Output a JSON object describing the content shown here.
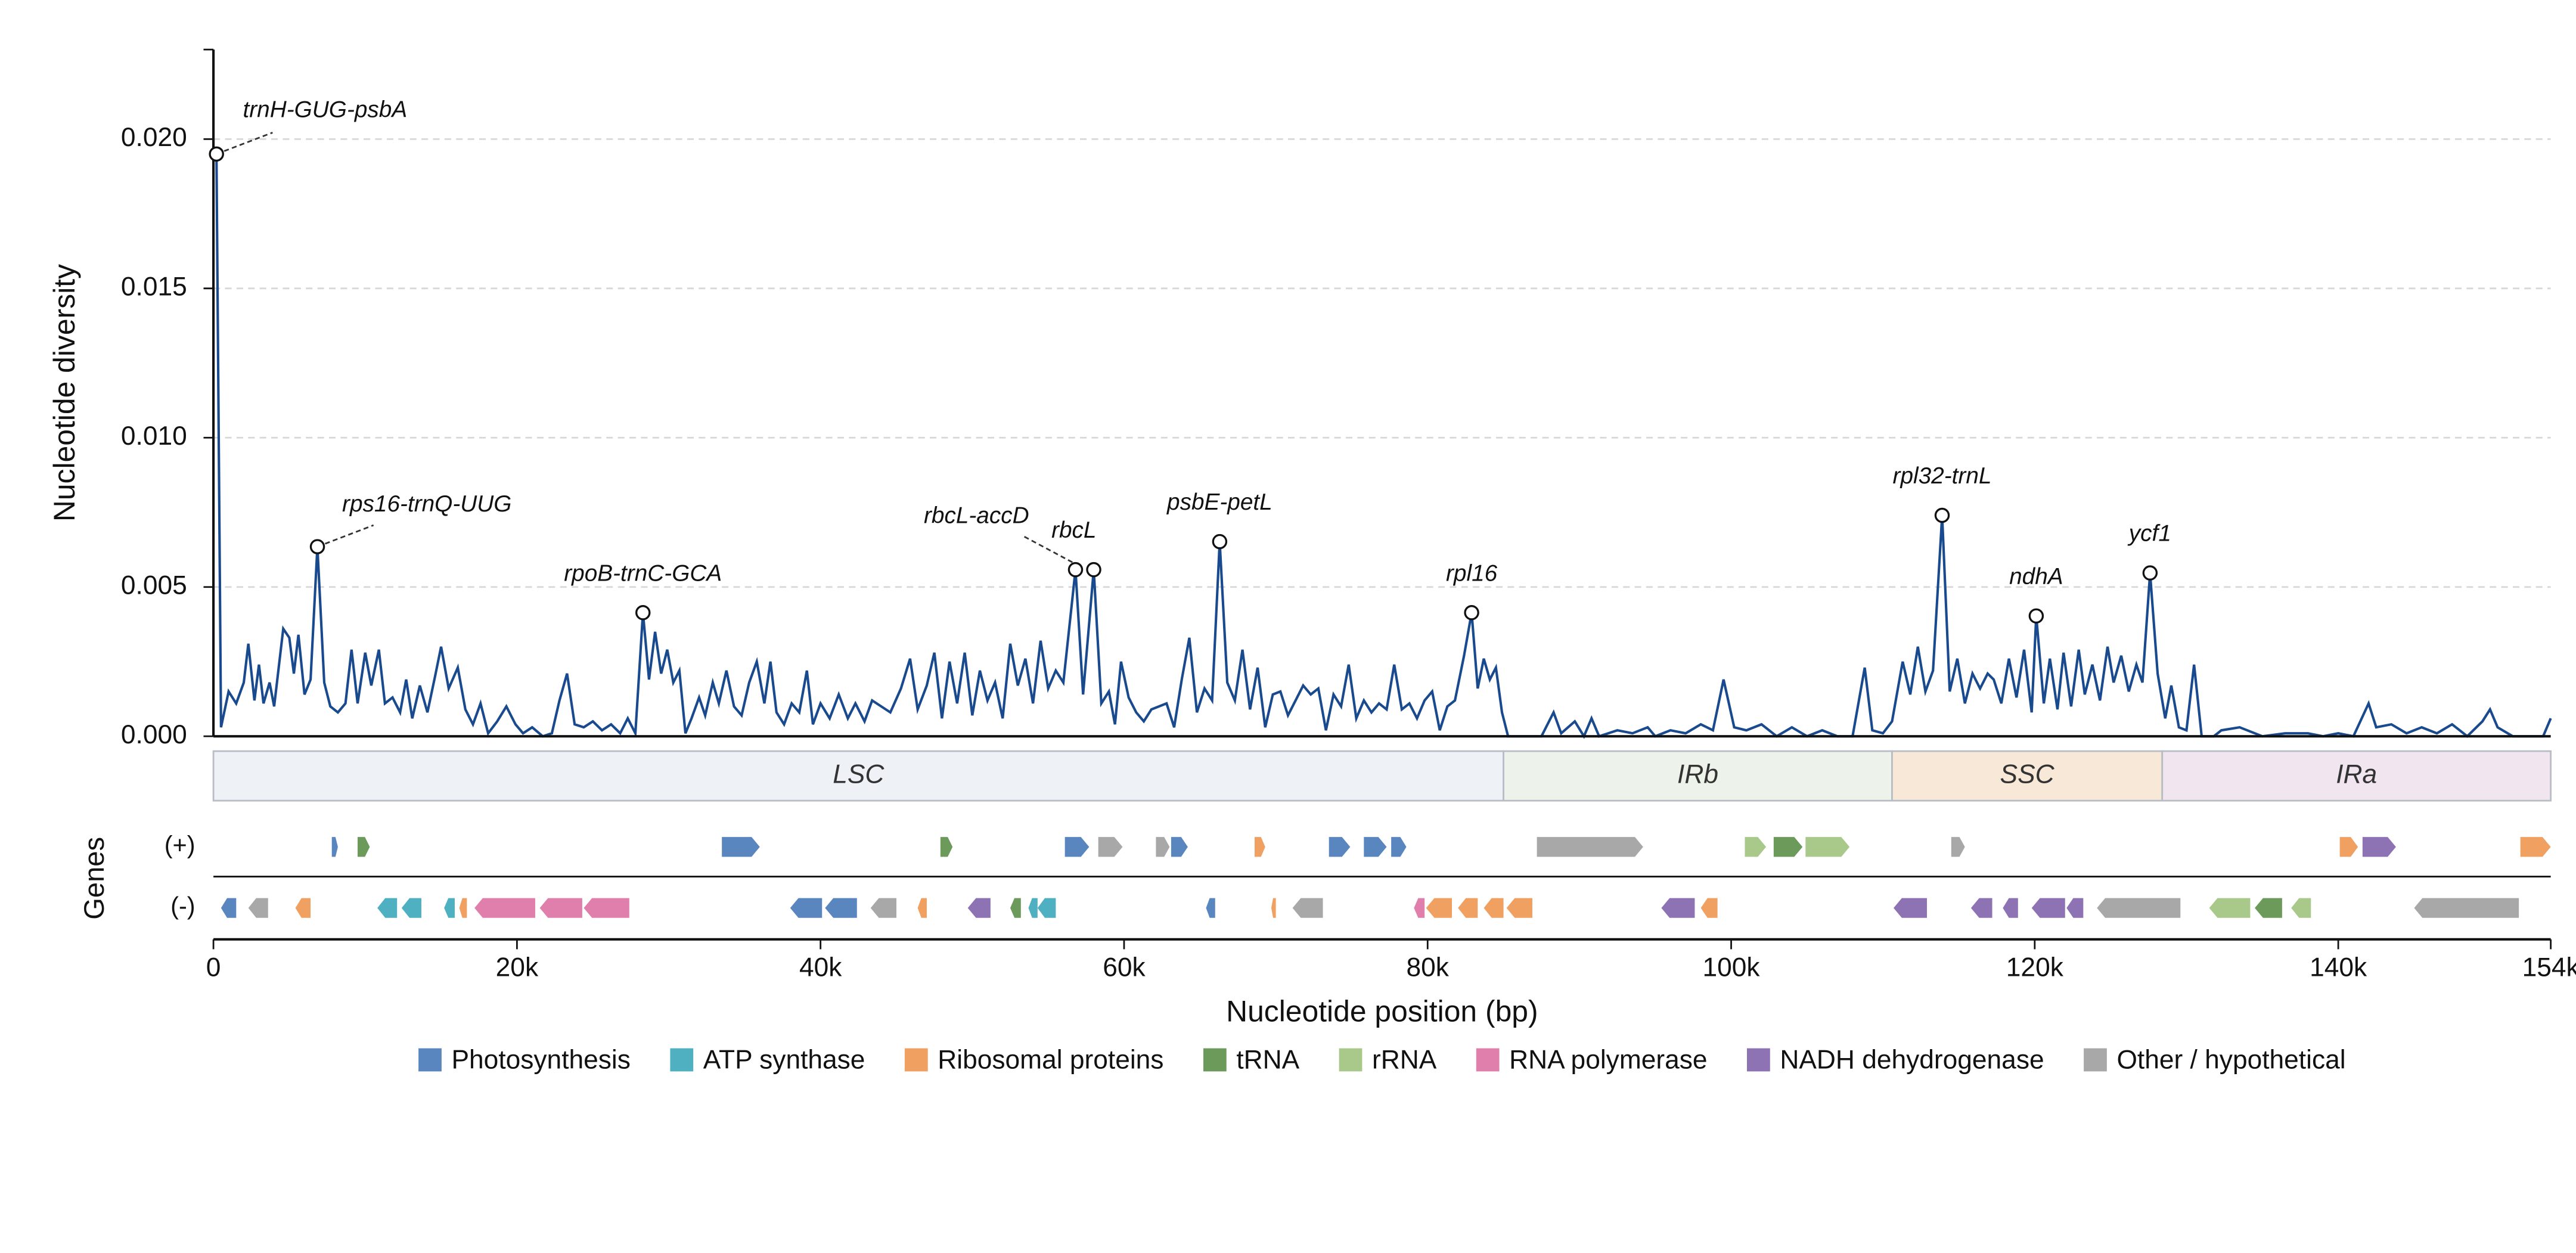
{
  "chart_data": {
    "type": "line",
    "ylabel": "Nucleotide diversity",
    "xlabel": "Nucleotide position (bp)",
    "track_title": "Genes",
    "color": "#1a4a8e",
    "xlim": [
      0,
      154000
    ],
    "ylim": [
      0,
      0.023
    ],
    "xticks": [
      0,
      {
        "value": 20000,
        "label": "20k"
      },
      {
        "value": 40000,
        "label": "40k"
      },
      {
        "value": 60000,
        "label": "60k"
      },
      {
        "value": 80000,
        "label": "80k"
      },
      {
        "value": 100000,
        "label": "100k"
      },
      {
        "value": 120000,
        "label": "120k"
      },
      {
        "value": 140000,
        "label": "140k"
      },
      {
        "value": 154000,
        "label": "154k"
      }
    ],
    "yticks": [
      {
        "value": 0,
        "label": "0.000"
      },
      0.005,
      {
        "value": 0.01,
        "label": "0.010"
      },
      0.015,
      {
        "value": 0.02,
        "label": "0.020"
      }
    ],
    "grid": true,
    "x": [
      200,
      500,
      1000,
      1500,
      2000,
      2300,
      2700,
      3000,
      3300,
      3700,
      4000,
      4600,
      5000,
      5300,
      5600,
      6000,
      6400,
      6850,
      7300,
      7700,
      8200,
      8700,
      9100,
      9500,
      10000,
      10400,
      10900,
      11300,
      11800,
      12300,
      12700,
      13100,
      13600,
      14100,
      14600,
      15000,
      15500,
      16100,
      16600,
      17100,
      17600,
      18100,
      18700,
      19300,
      19900,
      20400,
      21000,
      21700,
      22300,
      22800,
      23300,
      23800,
      24400,
      25000,
      25600,
      26200,
      26800,
      27300,
      27800,
      28300,
      28700,
      29100,
      29500,
      29900,
      30300,
      30700,
      31100,
      31500,
      32000,
      32400,
      32900,
      33300,
      33800,
      34300,
      34800,
      35300,
      35800,
      36300,
      36700,
      37100,
      37600,
      38100,
      38600,
      39100,
      39500,
      40000,
      40600,
      41200,
      41800,
      42300,
      42900,
      43400,
      44000,
      44600,
      45300,
      45900,
      46400,
      47000,
      47500,
      48000,
      48500,
      49000,
      49500,
      50000,
      50500,
      51000,
      51500,
      52000,
      52500,
      53000,
      53500,
      54000,
      54500,
      55000,
      55500,
      56000,
      56800,
      57300,
      58000,
      58500,
      59000,
      59400,
      59800,
      60300,
      60800,
      61300,
      61800,
      62300,
      62800,
      63300,
      63800,
      64300,
      64800,
      65300,
      65800,
      66300,
      66800,
      67300,
      67800,
      68300,
      68800,
      69300,
      69800,
      70300,
      70800,
      71300,
      71800,
      72300,
      72800,
      73300,
      73800,
      74300,
      74800,
      75300,
      75800,
      76300,
      76800,
      77300,
      77800,
      78300,
      78800,
      79300,
      79800,
      80300,
      80800,
      81300,
      81800,
      82400,
      82900,
      83300,
      83700,
      84100,
      84500,
      84900,
      85300,
      87500,
      88300,
      88800,
      89700,
      90300,
      90800,
      91300,
      92500,
      93500,
      94500,
      95000,
      96000,
      97000,
      98000,
      98800,
      99500,
      100200,
      101000,
      102000,
      103000,
      104000,
      105000,
      106000,
      107000,
      108000,
      108800,
      109300,
      110000,
      110600,
      111300,
      111800,
      112300,
      112800,
      113300,
      113900,
      114400,
      114900,
      115400,
      115900,
      116400,
      116900,
      117300,
      117800,
      118300,
      118800,
      119300,
      119800,
      120100,
      120600,
      121000,
      121500,
      121900,
      122400,
      122900,
      123300,
      123800,
      124300,
      124800,
      125200,
      125700,
      126200,
      126700,
      127100,
      127600,
      128100,
      128600,
      129000,
      129500,
      130000,
      130500,
      131000,
      131800,
      132300,
      133500,
      135000,
      136500,
      138000,
      139000,
      140000,
      141000,
      142000,
      142500,
      143500,
      144500,
      145500,
      146500,
      147500,
      148500,
      149500,
      150000,
      150500,
      151500,
      153500,
      154000
    ],
    "values": [
      0.0195,
      0.0003,
      0.0015,
      0.0011,
      0.0018,
      0.0031,
      0.0012,
      0.0024,
      0.0011,
      0.0018,
      0.001,
      0.0036,
      0.0033,
      0.0021,
      0.0034,
      0.0014,
      0.0019,
      0.00635,
      0.0018,
      0.001,
      0.0008,
      0.0011,
      0.0029,
      0.0011,
      0.0028,
      0.0017,
      0.0029,
      0.0011,
      0.0013,
      0.0008,
      0.0019,
      0.0006,
      0.0017,
      0.0008,
      0.002,
      0.003,
      0.0016,
      0.0023,
      0.0009,
      0.0004,
      0.0011,
      0.0001,
      0.0005,
      0.001,
      0.0004,
      0.0001,
      0.0003,
      0,
      0.0001,
      0.0012,
      0.0021,
      0.0004,
      0.0003,
      0.0005,
      0.0002,
      0.0004,
      0.0001,
      0.0006,
      0.0001,
      0.00414,
      0.0019,
      0.0035,
      0.0021,
      0.0029,
      0.0018,
      0.0022,
      0.0001,
      0.0006,
      0.0013,
      0.0007,
      0.0018,
      0.0011,
      0.0022,
      0.001,
      0.0007,
      0.0018,
      0.0025,
      0.0011,
      0.0025,
      0.0008,
      0.0004,
      0.0011,
      0.0008,
      0.0022,
      0.0004,
      0.0011,
      0.0006,
      0.0014,
      0.0006,
      0.0011,
      0.0005,
      0.0012,
      0.001,
      0.0008,
      0.0016,
      0.0026,
      0.0009,
      0.0017,
      0.0028,
      0.0006,
      0.0025,
      0.0011,
      0.0028,
      0.0007,
      0.0022,
      0.0012,
      0.0018,
      0.0006,
      0.0031,
      0.0017,
      0.0026,
      0.0011,
      0.0032,
      0.0016,
      0.0022,
      0.0018,
      0.00558,
      0.0014,
      0.00558,
      0.0011,
      0.0015,
      0.0004,
      0.0025,
      0.0013,
      0.0008,
      0.0005,
      0.0009,
      0.001,
      0.0011,
      0.0003,
      0.0019,
      0.0033,
      0.0008,
      0.0016,
      0.0012,
      0.00652,
      0.0018,
      0.0012,
      0.0029,
      0.0009,
      0.0023,
      0.0003,
      0.0014,
      0.0015,
      0.0007,
      0.0012,
      0.0017,
      0.0014,
      0.0016,
      0.0002,
      0.0014,
      0.001,
      0.0024,
      0.0006,
      0.0012,
      0.0008,
      0.0011,
      0.0009,
      0.0024,
      0.0009,
      0.0011,
      0.0006,
      0.0012,
      0.0015,
      0.0002,
      0.001,
      0.0012,
      0.0027,
      0.00414,
      0.0016,
      0.0026,
      0.0019,
      0.0023,
      0.0008,
      0,
      0,
      0.0008,
      0.0001,
      0.0005,
      0,
      0.0006,
      0,
      0.0002,
      0.0001,
      0.0003,
      0,
      0.0002,
      0.0001,
      0.0004,
      0.0002,
      0.0019,
      0.0003,
      0.0002,
      0.0004,
      0,
      0.0003,
      0,
      0.0002,
      0,
      0,
      0.0023,
      0.0002,
      0.0001,
      0.0005,
      0.0025,
      0.0014,
      0.003,
      0.0015,
      0.0022,
      0.0074,
      0.0015,
      0.0026,
      0.0011,
      0.0021,
      0.0016,
      0.0021,
      0.0019,
      0.0011,
      0.0026,
      0.0013,
      0.0029,
      0.0008,
      0.00403,
      0.0011,
      0.0026,
      0.0009,
      0.0028,
      0.001,
      0.0029,
      0.0014,
      0.0024,
      0.0012,
      0.003,
      0.0018,
      0.0027,
      0.0015,
      0.0024,
      0.0018,
      0.00547,
      0.0021,
      0.0006,
      0.0017,
      0.0003,
      0.0002,
      0.0024,
      0,
      0,
      0.0002,
      0.0003,
      0,
      0.0001,
      0.0001,
      0,
      0.0001,
      0,
      0.0011,
      0.0003,
      0.0004,
      0.0001,
      0.0003,
      0.0001,
      0.0004,
      0,
      0.0005,
      0.0009,
      0.0003,
      0,
      0,
      0.0006
    ],
    "annotations": [
      {
        "label": "trnH-GUG-psbA",
        "x": 200,
        "y": 0.0195
      },
      {
        "label": "rps16-trnQ-UUG",
        "x": 6850,
        "y": 0.00635
      },
      {
        "label": "rpoB-trnC-GCA",
        "x": 28300,
        "y": 0.00414
      },
      {
        "label": "rbcL-accD",
        "x": 56800,
        "y": 0.00558
      },
      {
        "label": "rbcL",
        "x": 58000,
        "y": 0.00558
      },
      {
        "label": "psbE-petL",
        "x": 66300,
        "y": 0.00652
      },
      {
        "label": "rpl16",
        "x": 82900,
        "y": 0.00414
      },
      {
        "label": "rpl32-trnL",
        "x": 113900,
        "y": 0.0074
      },
      {
        "label": "ndhA",
        "x": 120100,
        "y": 0.00403
      },
      {
        "label": "ycf1",
        "x": 127600,
        "y": 0.00547
      }
    ],
    "regions": [
      {
        "name": "LSC",
        "start": 0,
        "end": 85000,
        "color": "#eef2f6"
      },
      {
        "name": "IRb",
        "start": 85000,
        "end": 110600,
        "color": "#edf3ea"
      },
      {
        "name": "SSC",
        "start": 110600,
        "end": 128400,
        "color": "#f8e8d8"
      },
      {
        "name": "IRa",
        "start": 128400,
        "end": 154000,
        "color": "#f1e5f0"
      }
    ],
    "categories": [
      {
        "name": "Photosynthesis",
        "color": "#5a86c0"
      },
      {
        "name": "ATP synthase",
        "color": "#4fb0c1"
      },
      {
        "name": "Ribosomal proteins",
        "color": "#f0a060"
      },
      {
        "name": "tRNA",
        "color": "#6b9a5a"
      },
      {
        "name": "rRNA",
        "color": "#a8c98a"
      },
      {
        "name": "RNA polymerase",
        "color": "#e07fab"
      },
      {
        "name": "NADH dehydrogenase",
        "color": "#8d72b4"
      },
      {
        "name": "Other / hypothetical",
        "color": "#a8a8a8"
      }
    ],
    "tracks": [
      {
        "label": "(+)",
        "genes": [
          [
            7800,
            8200,
            "Photosynthesis"
          ],
          [
            9500,
            10300,
            "tRNA"
          ],
          [
            33500,
            36000,
            "Photosynthesis"
          ],
          [
            47900,
            48700,
            "tRNA"
          ],
          [
            56100,
            57700,
            "Photosynthesis"
          ],
          [
            58300,
            59900,
            "Other / hypothetical"
          ],
          [
            62100,
            63000,
            "Other / hypothetical"
          ],
          [
            63100,
            64200,
            "Photosynthesis"
          ],
          [
            68600,
            69300,
            "Ribosomal proteins"
          ],
          [
            73500,
            74900,
            "Photosynthesis"
          ],
          [
            75800,
            77300,
            "Photosynthesis"
          ],
          [
            77600,
            78600,
            "Photosynthesis"
          ],
          [
            87200,
            94200,
            "Other / hypothetical"
          ],
          [
            100900,
            102300,
            "rRNA"
          ],
          [
            102800,
            104700,
            "tRNA"
          ],
          [
            104900,
            107800,
            "rRNA"
          ],
          [
            114500,
            115400,
            "Other / hypothetical"
          ],
          [
            140100,
            141300,
            "Ribosomal proteins"
          ],
          [
            141600,
            143800,
            "NADH dehydrogenase"
          ],
          [
            152000,
            154000,
            "Ribosomal proteins"
          ]
        ]
      },
      {
        "label": "(-)",
        "genes": [
          [
            500,
            1500,
            "Photosynthesis"
          ],
          [
            2300,
            3600,
            "Other / hypothetical"
          ],
          [
            5400,
            6400,
            "Ribosomal proteins"
          ],
          [
            10800,
            12100,
            "ATP synthase"
          ],
          [
            12400,
            13700,
            "ATP synthase"
          ],
          [
            15200,
            15900,
            "ATP synthase"
          ],
          [
            16200,
            16700,
            "Ribosomal proteins"
          ],
          [
            17200,
            21200,
            "RNA polymerase"
          ],
          [
            21500,
            24300,
            "RNA polymerase"
          ],
          [
            24400,
            27400,
            "RNA polymerase"
          ],
          [
            38000,
            40100,
            "Photosynthesis"
          ],
          [
            40300,
            42400,
            "Photosynthesis"
          ],
          [
            43300,
            45000,
            "Other / hypothetical"
          ],
          [
            46400,
            47000,
            "Ribosomal proteins"
          ],
          [
            49700,
            51200,
            "NADH dehydrogenase"
          ],
          [
            52500,
            53200,
            "tRNA"
          ],
          [
            53700,
            54300,
            "ATP synthase"
          ],
          [
            54300,
            55500,
            "ATP synthase"
          ],
          [
            65400,
            66000,
            "Photosynthesis"
          ],
          [
            69700,
            70000,
            "Ribosomal proteins"
          ],
          [
            71100,
            73100,
            "Other / hypothetical"
          ],
          [
            79100,
            79800,
            "RNA polymerase"
          ],
          [
            79900,
            81600,
            "Ribosomal proteins"
          ],
          [
            82000,
            83300,
            "Ribosomal proteins"
          ],
          [
            83700,
            85000,
            "Ribosomal proteins"
          ],
          [
            85200,
            86900,
            "Ribosomal proteins"
          ],
          [
            95400,
            97600,
            "NADH dehydrogenase"
          ],
          [
            98000,
            99100,
            "Ribosomal proteins"
          ],
          [
            110700,
            112900,
            "NADH dehydrogenase"
          ],
          [
            115800,
            117200,
            "NADH dehydrogenase"
          ],
          [
            117900,
            118900,
            "NADH dehydrogenase"
          ],
          [
            119800,
            122000,
            "NADH dehydrogenase"
          ],
          [
            122100,
            123200,
            "NADH dehydrogenase"
          ],
          [
            124100,
            129600,
            "Other / hypothetical"
          ],
          [
            131500,
            134200,
            "rRNA"
          ],
          [
            134500,
            136300,
            "tRNA"
          ],
          [
            136900,
            138200,
            "rRNA"
          ],
          [
            145000,
            151900,
            "Other / hypothetical"
          ]
        ]
      }
    ]
  }
}
